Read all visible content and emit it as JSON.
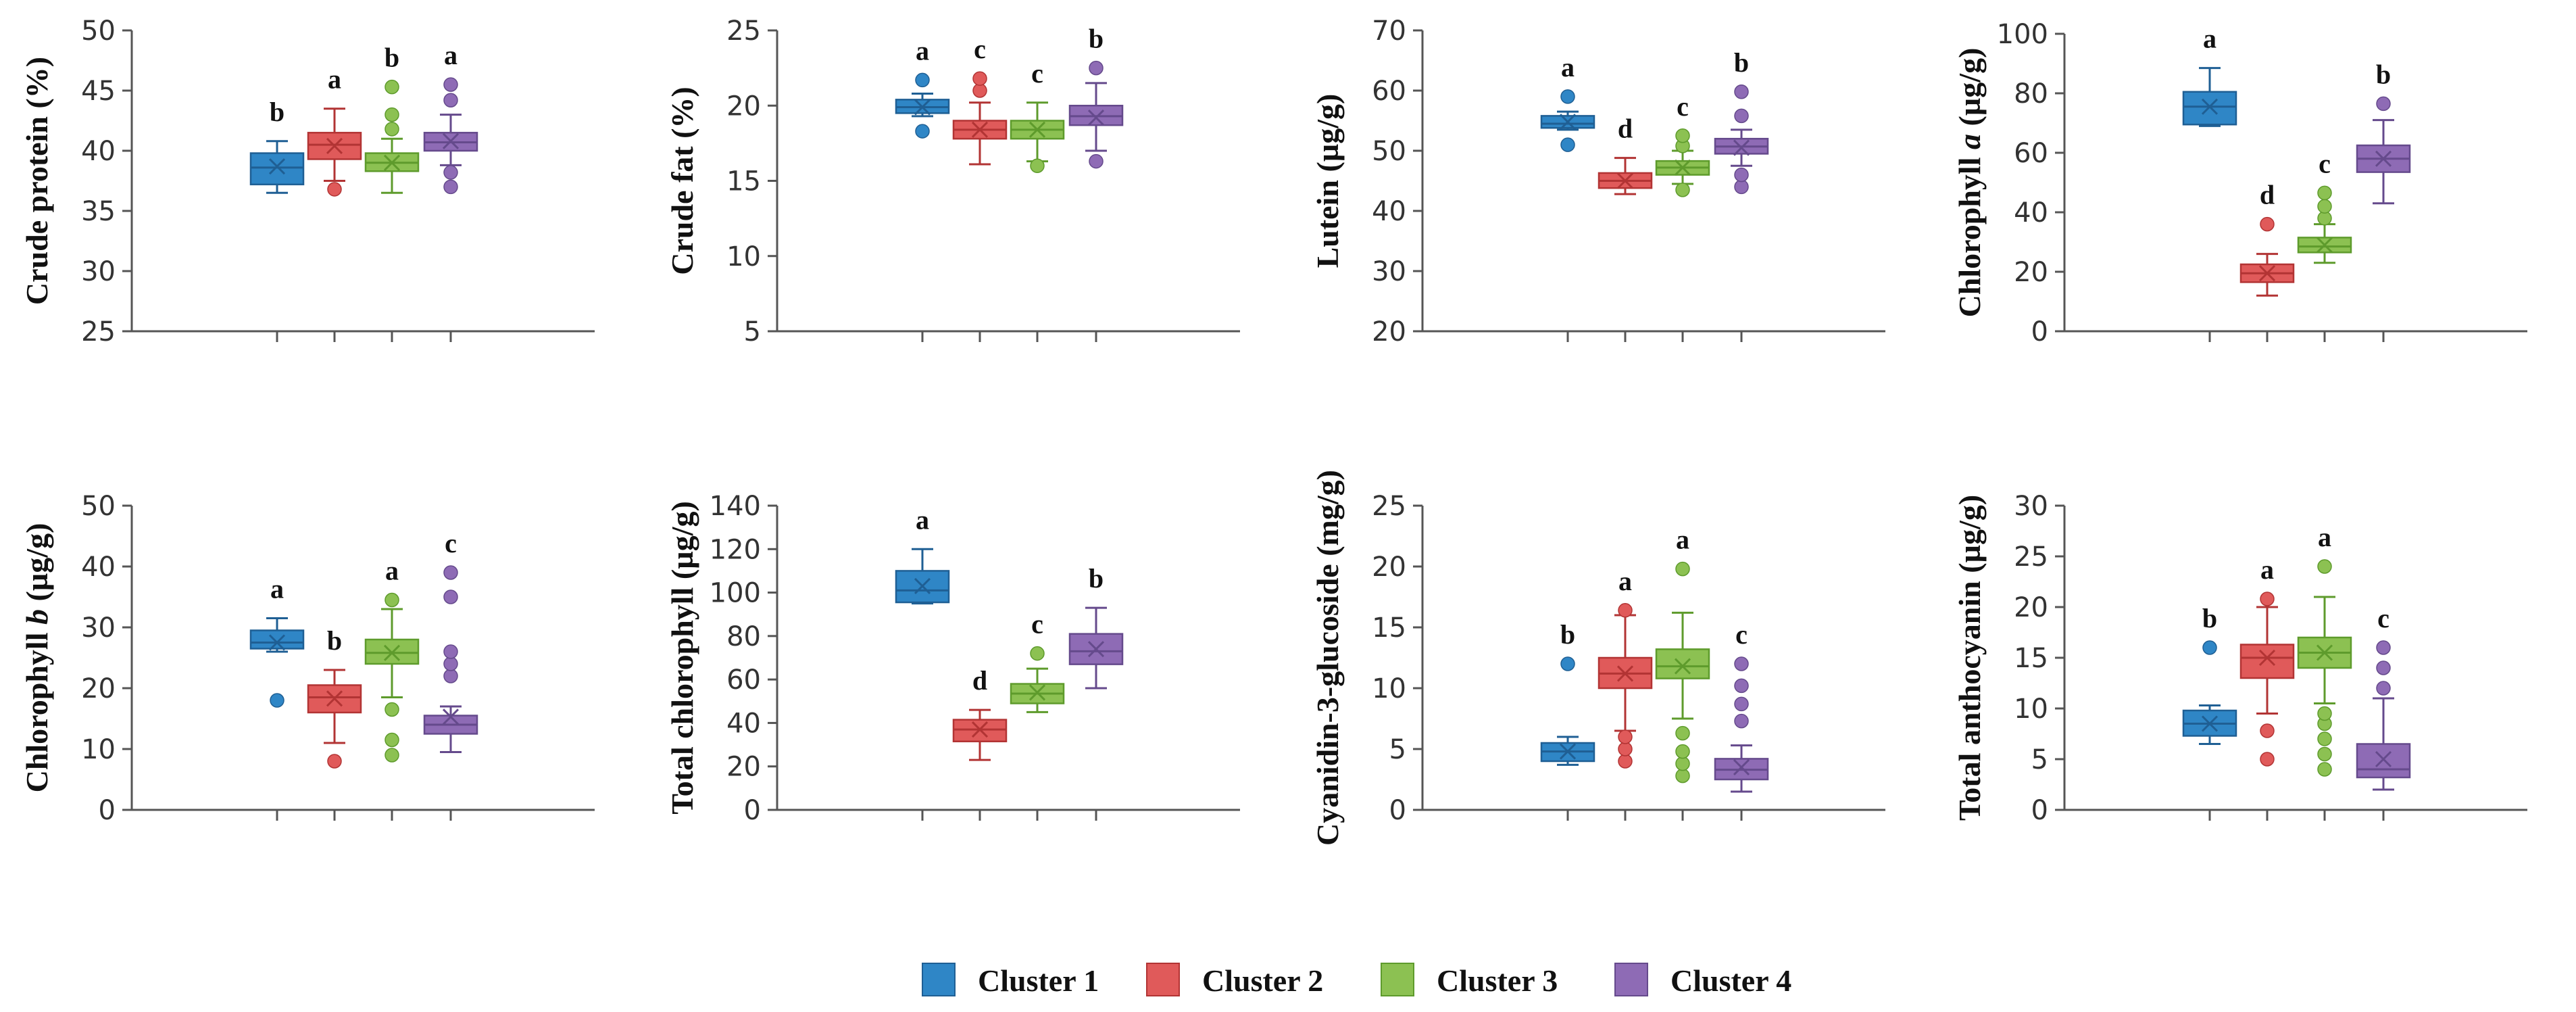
{
  "colors": {
    "Cluster 1": {
      "fill": "#2f86c6",
      "stroke": "#1f5f94"
    },
    "Cluster 2": {
      "fill": "#e05a5a",
      "stroke": "#b23434"
    },
    "Cluster 3": {
      "fill": "#8cc152",
      "stroke": "#5e9b2c"
    },
    "Cluster 4": {
      "fill": "#8e6bb5",
      "stroke": "#654a8c"
    }
  },
  "legend": [
    "Cluster 1",
    "Cluster 2",
    "Cluster 3",
    "Cluster 4"
  ],
  "chart_data": [
    {
      "type": "box",
      "id": "crude-protein",
      "ylabel": [
        {
          "t": "Crude protein (%)"
        }
      ],
      "ylim": [
        25,
        50
      ],
      "yticks": [
        25,
        30,
        35,
        40,
        45,
        50
      ],
      "series": [
        {
          "name": "Cluster 1",
          "min": 36.5,
          "q1": 37.2,
          "median": 38.6,
          "q3": 39.8,
          "max": 40.8,
          "mean": 38.7,
          "outliers": [],
          "letter": "b"
        },
        {
          "name": "Cluster 2",
          "min": 37.5,
          "q1": 39.3,
          "median": 40.5,
          "q3": 41.5,
          "max": 43.5,
          "mean": 40.4,
          "outliers": [
            36.8
          ],
          "letter": "a"
        },
        {
          "name": "Cluster 3",
          "min": 36.5,
          "q1": 38.3,
          "median": 39.0,
          "q3": 39.8,
          "max": 41.0,
          "mean": 39.0,
          "outliers": [
            41.8,
            43.0,
            45.3
          ],
          "letter": "b"
        },
        {
          "name": "Cluster 4",
          "min": 38.8,
          "q1": 40.0,
          "median": 40.7,
          "q3": 41.5,
          "max": 43.0,
          "mean": 40.8,
          "outliers": [
            37.0,
            38.2,
            44.2,
            45.5
          ],
          "letter": "a"
        }
      ]
    },
    {
      "type": "box",
      "id": "crude-fat",
      "ylabel": [
        {
          "t": "Crude fat (%)"
        }
      ],
      "ylim": [
        5,
        25
      ],
      "yticks": [
        5,
        10,
        15,
        20,
        25
      ],
      "series": [
        {
          "name": "Cluster 1",
          "min": 19.3,
          "q1": 19.5,
          "median": 19.9,
          "q3": 20.4,
          "max": 20.8,
          "mean": 19.9,
          "outliers": [
            18.3,
            21.7
          ],
          "letter": "a"
        },
        {
          "name": "Cluster 2",
          "min": 16.1,
          "q1": 17.8,
          "median": 18.4,
          "q3": 19.0,
          "max": 20.2,
          "mean": 18.4,
          "outliers": [
            21.0,
            21.8
          ],
          "letter": "c"
        },
        {
          "name": "Cluster 3",
          "min": 16.3,
          "q1": 17.8,
          "median": 18.4,
          "q3": 19.0,
          "max": 20.2,
          "mean": 18.4,
          "outliers": [
            16.0
          ],
          "letter": "c"
        },
        {
          "name": "Cluster 4",
          "min": 17.0,
          "q1": 18.7,
          "median": 19.3,
          "q3": 20.0,
          "max": 21.5,
          "mean": 19.2,
          "outliers": [
            16.3,
            22.5
          ],
          "letter": "b"
        }
      ]
    },
    {
      "type": "box",
      "id": "lutein",
      "ylabel": [
        {
          "t": "Lutein (µg/g)"
        }
      ],
      "ylim": [
        20,
        70
      ],
      "yticks": [
        20,
        30,
        40,
        50,
        60,
        70
      ],
      "series": [
        {
          "name": "Cluster 1",
          "min": 53.5,
          "q1": 53.8,
          "median": 54.5,
          "q3": 55.8,
          "max": 56.5,
          "mean": 54.8,
          "outliers": [
            51.0,
            59.0
          ],
          "letter": "a"
        },
        {
          "name": "Cluster 2",
          "min": 42.8,
          "q1": 43.8,
          "median": 45.0,
          "q3": 46.3,
          "max": 48.8,
          "mean": 45.0,
          "outliers": [],
          "letter": "d"
        },
        {
          "name": "Cluster 3",
          "min": 44.5,
          "q1": 46.0,
          "median": 47.2,
          "q3": 48.3,
          "max": 50.0,
          "mean": 47.2,
          "outliers": [
            43.5,
            50.8,
            52.5
          ],
          "letter": "c"
        },
        {
          "name": "Cluster 4",
          "min": 47.5,
          "q1": 49.5,
          "median": 50.7,
          "q3": 52.0,
          "max": 53.5,
          "mean": 50.5,
          "outliers": [
            44.0,
            46.0,
            55.8,
            59.8
          ],
          "letter": "b"
        }
      ]
    },
    {
      "type": "box",
      "id": "chlorophyll-a",
      "ylabel": [
        {
          "t": "Chlorophyll "
        },
        {
          "t": "a",
          "i": true
        },
        {
          "t": " (µg/g)"
        }
      ],
      "ylim": [
        0,
        100
      ],
      "yticks": [
        0,
        20,
        40,
        60,
        80,
        100
      ],
      "series": [
        {
          "name": "Cluster 1",
          "min": 69.0,
          "q1": 69.5,
          "median": 75.5,
          "q3": 80.5,
          "max": 88.5,
          "mean": 75.5,
          "outliers": [],
          "letter": "a"
        },
        {
          "name": "Cluster 2",
          "min": 12.0,
          "q1": 16.5,
          "median": 19.5,
          "q3": 22.5,
          "max": 26.0,
          "mean": 19.5,
          "outliers": [
            36.0
          ],
          "letter": "d"
        },
        {
          "name": "Cluster 3",
          "min": 23.0,
          "q1": 26.5,
          "median": 28.5,
          "q3": 31.5,
          "max": 36.0,
          "mean": 29.0,
          "outliers": [
            38.0,
            42.0,
            46.5
          ],
          "letter": "c"
        },
        {
          "name": "Cluster 4",
          "min": 43.0,
          "q1": 53.5,
          "median": 58.0,
          "q3": 62.5,
          "max": 71.0,
          "mean": 58.0,
          "outliers": [
            76.5
          ],
          "letter": "b"
        }
      ]
    },
    {
      "type": "box",
      "id": "chlorophyll-b",
      "ylabel": [
        {
          "t": "Chlorophyll "
        },
        {
          "t": "b",
          "i": true
        },
        {
          "t": " (µg/g)"
        }
      ],
      "ylim": [
        0,
        50
      ],
      "yticks": [
        0,
        10,
        20,
        30,
        40,
        50
      ],
      "series": [
        {
          "name": "Cluster 1",
          "min": 26.0,
          "q1": 26.5,
          "median": 27.5,
          "q3": 29.5,
          "max": 31.5,
          "mean": 27.5,
          "outliers": [
            18.0
          ],
          "letter": "a"
        },
        {
          "name": "Cluster 2",
          "min": 11.0,
          "q1": 16.0,
          "median": 18.5,
          "q3": 20.5,
          "max": 23.0,
          "mean": 18.3,
          "outliers": [
            8.0
          ],
          "letter": "b"
        },
        {
          "name": "Cluster 3",
          "min": 18.5,
          "q1": 24.0,
          "median": 25.8,
          "q3": 28.0,
          "max": 33.0,
          "mean": 25.8,
          "outliers": [
            9.0,
            11.5,
            16.5,
            34.5
          ],
          "letter": "a"
        },
        {
          "name": "Cluster 4",
          "min": 9.5,
          "q1": 12.5,
          "median": 14.0,
          "q3": 15.5,
          "max": 17.0,
          "mean": 15.3,
          "outliers": [
            22.0,
            24.0,
            26.0,
            35.0,
            39.0
          ],
          "letter": "c"
        }
      ]
    },
    {
      "type": "box",
      "id": "total-chlorophyll",
      "ylabel": [
        {
          "t": "Total chlorophyll (µg/g)"
        }
      ],
      "ylim": [
        0,
        140
      ],
      "yticks": [
        0,
        20,
        40,
        60,
        80,
        100,
        120,
        140
      ],
      "series": [
        {
          "name": "Cluster 1",
          "min": 95.0,
          "q1": 95.5,
          "median": 101.0,
          "q3": 110.0,
          "max": 120.0,
          "mean": 103.0,
          "outliers": [],
          "letter": "a"
        },
        {
          "name": "Cluster 2",
          "min": 23.0,
          "q1": 31.5,
          "median": 37.0,
          "q3": 41.5,
          "max": 46.0,
          "mean": 37.0,
          "outliers": [],
          "letter": "d"
        },
        {
          "name": "Cluster 3",
          "min": 45.0,
          "q1": 49.0,
          "median": 53.5,
          "q3": 58.0,
          "max": 65.0,
          "mean": 54.0,
          "outliers": [
            72.0
          ],
          "letter": "c"
        },
        {
          "name": "Cluster 4",
          "min": 56.0,
          "q1": 67.0,
          "median": 73.0,
          "q3": 81.0,
          "max": 93.0,
          "mean": 74.0,
          "outliers": [],
          "letter": "b"
        }
      ]
    },
    {
      "type": "box",
      "id": "cyanidin",
      "ylabel": [
        {
          "t": "Cyanidin-3-glucoside  (mg/g)"
        }
      ],
      "ylim": [
        0,
        25
      ],
      "yticks": [
        0,
        5,
        10,
        15,
        20,
        25
      ],
      "series": [
        {
          "name": "Cluster 1",
          "min": 3.7,
          "q1": 4.0,
          "median": 4.8,
          "q3": 5.5,
          "max": 6.0,
          "mean": 4.8,
          "outliers": [
            12.0
          ],
          "letter": "b"
        },
        {
          "name": "Cluster 2",
          "min": 6.5,
          "q1": 10.0,
          "median": 11.2,
          "q3": 12.5,
          "max": 16.0,
          "mean": 11.2,
          "outliers": [
            4.0,
            5.0,
            6.0,
            16.4
          ],
          "letter": "a"
        },
        {
          "name": "Cluster 3",
          "min": 7.5,
          "q1": 10.8,
          "median": 11.8,
          "q3": 13.2,
          "max": 16.2,
          "mean": 11.8,
          "outliers": [
            2.8,
            3.8,
            4.8,
            6.3,
            19.8
          ],
          "letter": "a"
        },
        {
          "name": "Cluster 4",
          "min": 1.5,
          "q1": 2.5,
          "median": 3.3,
          "q3": 4.2,
          "max": 5.3,
          "mean": 3.5,
          "outliers": [
            7.3,
            8.7,
            10.2,
            12.0
          ],
          "letter": "c"
        }
      ]
    },
    {
      "type": "box",
      "id": "total-anthocyanin",
      "ylabel": [
        {
          "t": "Total anthocyanin (µg/g)"
        }
      ],
      "ylim": [
        0,
        30
      ],
      "yticks": [
        0,
        5,
        10,
        15,
        20,
        25,
        30
      ],
      "series": [
        {
          "name": "Cluster 1",
          "min": 6.5,
          "q1": 7.3,
          "median": 8.5,
          "q3": 9.8,
          "max": 10.3,
          "mean": 8.5,
          "outliers": [
            16.0
          ],
          "letter": "b"
        },
        {
          "name": "Cluster 2",
          "min": 9.5,
          "q1": 13.0,
          "median": 15.0,
          "q3": 16.3,
          "max": 20.0,
          "mean": 15.0,
          "outliers": [
            5.0,
            7.8,
            20.8
          ],
          "letter": "a"
        },
        {
          "name": "Cluster 3",
          "min": 10.5,
          "q1": 14.0,
          "median": 15.5,
          "q3": 17.0,
          "max": 21.0,
          "mean": 15.5,
          "outliers": [
            4.0,
            5.5,
            7.0,
            8.5,
            9.5,
            24.0
          ],
          "letter": "a"
        },
        {
          "name": "Cluster 4",
          "min": 2.0,
          "q1": 3.2,
          "median": 4.0,
          "q3": 6.5,
          "max": 11.0,
          "mean": 5.0,
          "outliers": [
            12.0,
            14.0,
            16.0
          ],
          "letter": "c"
        }
      ]
    }
  ]
}
